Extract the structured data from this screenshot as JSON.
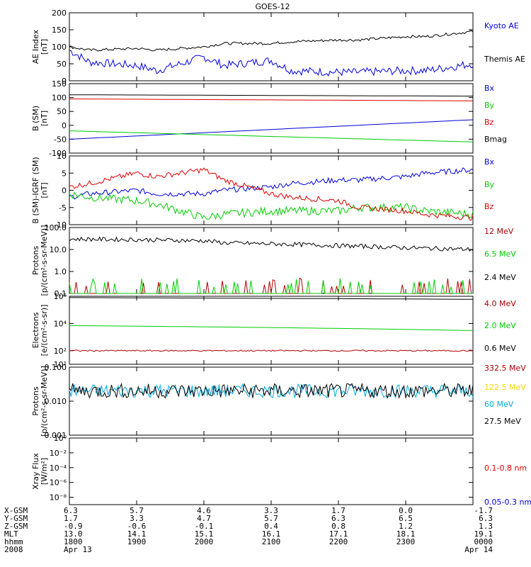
{
  "title": "GOES-12",
  "colors": {
    "black": "#000000",
    "blue": "#0000dd",
    "red": "#dd0000",
    "green": "#00cc00",
    "darkred": "#b00000",
    "yellow": "#ffd700",
    "cyan": "#00aadd"
  },
  "chart_data": [
    {
      "type": "line",
      "ylabel_lines": [
        "AE Index",
        "[nT]"
      ],
      "ylim": [
        0,
        200
      ],
      "log": false,
      "yticks": [
        0,
        50,
        100,
        150,
        200
      ],
      "ytick_labels": [
        "0",
        "50",
        "100",
        "150",
        "200"
      ],
      "x": [
        1800,
        1830,
        1900,
        1930,
        2000,
        2030,
        2100,
        2130,
        2200,
        2230,
        2300,
        2330,
        2400
      ],
      "series": [
        {
          "name": "Kyoto AE",
          "color": "blue",
          "values": [
            90,
            55,
            45,
            30,
            70,
            45,
            60,
            30,
            25,
            25,
            30,
            30,
            50
          ],
          "noise": 12
        },
        {
          "name": "Themis AE",
          "color": "black",
          "values": [
            100,
            90,
            95,
            90,
            100,
            110,
            110,
            115,
            120,
            120,
            130,
            130,
            145
          ],
          "noise": 4
        }
      ]
    },
    {
      "type": "line",
      "ylabel_lines": [
        "B (SM)",
        "[nT]"
      ],
      "ylim": [
        -100,
        150
      ],
      "log": false,
      "yticks": [
        -100,
        -50,
        0,
        50,
        100,
        150
      ],
      "ytick_labels": [
        "-100",
        "-50",
        "0",
        "50",
        "100",
        "150"
      ],
      "x": [
        1800,
        2400
      ],
      "series": [
        {
          "name": "Bx",
          "color": "blue",
          "values": [
            -50,
            20
          ],
          "noise": 0
        },
        {
          "name": "By",
          "color": "green",
          "values": [
            -20,
            -60
          ],
          "noise": 0
        },
        {
          "name": "Bz",
          "color": "red",
          "values": [
            95,
            88
          ],
          "noise": 0
        },
        {
          "name": "Bmag",
          "color": "black",
          "values": [
            110,
            105
          ],
          "noise": 0
        }
      ]
    },
    {
      "type": "line",
      "ylabel_lines": [
        "B (SM)-IGRF (SM)",
        "[nT]"
      ],
      "ylim": [
        -10,
        10
      ],
      "log": false,
      "yticks": [
        -10,
        -5,
        0,
        5,
        10
      ],
      "ytick_labels": [
        "-10",
        "-5",
        "0",
        "5",
        "10"
      ],
      "x": [
        1800,
        1830,
        1900,
        1930,
        2000,
        2030,
        2100,
        2130,
        2200,
        2230,
        2300,
        2330,
        2400
      ],
      "series": [
        {
          "name": "Bx",
          "color": "blue",
          "values": [
            -2,
            -1,
            0,
            -1,
            -1,
            0,
            1,
            2,
            3,
            3,
            4,
            5,
            6
          ],
          "noise": 0.8
        },
        {
          "name": "By",
          "color": "green",
          "values": [
            -1,
            -2,
            -3,
            -4,
            -8,
            -7,
            -6,
            -6,
            -6,
            -5,
            -5,
            -6,
            -7
          ],
          "noise": 1.2
        },
        {
          "name": "Bz",
          "color": "red",
          "values": [
            1,
            2,
            5,
            4,
            6,
            3,
            -1,
            -2,
            -3,
            -5,
            -6,
            -7,
            -8
          ],
          "noise": 0.8
        }
      ]
    },
    {
      "type": "line",
      "ylabel_lines": [
        "Protons",
        "[p/(cm²-s-sr-MeV)]"
      ],
      "ylim": [
        0.1,
        100
      ],
      "log": true,
      "yticks": [
        0.1,
        1,
        10,
        100
      ],
      "ytick_labels": [
        "0.1",
        "1.0",
        "10.0",
        "100.0"
      ],
      "x": [
        1800,
        1900,
        2000,
        2030,
        2100,
        2200,
        2300,
        2400
      ],
      "series": [
        {
          "name": "12 MeV",
          "color": "darkred",
          "values": [
            0.1,
            0.1,
            0.1,
            0.1,
            0.1,
            0.1,
            0.1,
            0.1
          ],
          "noise": 0,
          "spikes": true
        },
        {
          "name": "6.5 MeV",
          "color": "green",
          "values": [
            0.1,
            0.1,
            0.1,
            0.1,
            0.1,
            0.1,
            0.1,
            0.1
          ],
          "noise": 0,
          "spikes": true
        },
        {
          "name": "2.4 MeV",
          "color": "black",
          "values": [
            30,
            28,
            25,
            20,
            18,
            15,
            12,
            10
          ],
          "noise": 0.1
        }
      ]
    },
    {
      "type": "line",
      "ylabel_lines": [
        "Electrons",
        "[e/(cm²-s-sr)]"
      ],
      "ylim": [
        10,
        1000000
      ],
      "log": true,
      "yticks": [
        10,
        100,
        10000,
        1000000
      ],
      "ytick_labels": [
        "10¹",
        "10²",
        "10⁴",
        "10⁶"
      ],
      "x": [
        1800,
        2400
      ],
      "series": [
        {
          "name": "4.0 MeV",
          "color": "darkred",
          "values": [
            100,
            100
          ],
          "noise": 0.05
        },
        {
          "name": "2.0 MeV",
          "color": "green",
          "values": [
            7000,
            3000
          ],
          "noise": 0
        },
        {
          "name": "0.6 MeV",
          "color": "black",
          "values": [
            800000,
            600000
          ],
          "noise": 0
        }
      ]
    },
    {
      "type": "line",
      "ylabel_lines": [
        "Protons",
        "[p/(cm²-s-sr-MeV)]"
      ],
      "ylim": [
        0.001,
        0.1
      ],
      "log": true,
      "yticks": [
        0.001,
        0.01,
        0.1
      ],
      "ytick_labels": [
        "0.001",
        "0.010",
        "0.100"
      ],
      "x": [
        1800,
        2400
      ],
      "series": [
        {
          "name": "332.5 MeV",
          "color": "darkred",
          "values": null,
          "noise": 0
        },
        {
          "name": "122.5 MeV",
          "color": "yellow",
          "values": null,
          "noise": 0
        },
        {
          "name": "60 MeV",
          "color": "cyan",
          "values": [
            0.02,
            0.02
          ],
          "noise": 0.2
        },
        {
          "name": "27.5 MeV",
          "color": "black",
          "values": [
            0.02,
            0.02
          ],
          "noise": 0.22
        }
      ]
    },
    {
      "type": "line",
      "ylabel_lines": [
        "Xray Flux",
        "[W/m²]"
      ],
      "ylim": [
        1e-09,
        1
      ],
      "log": true,
      "yticks": [
        1,
        0.01,
        0.0001,
        1e-06,
        1e-08
      ],
      "ytick_labels": [
        "10⁰",
        "10⁻²",
        "10⁻⁴",
        "10⁻⁶",
        "10⁻⁸"
      ],
      "x": [
        1800,
        2400
      ],
      "series": [
        {
          "name": "0.1-0.8 nm",
          "color": "red",
          "values": null,
          "noise": 0
        },
        {
          "name": "0.05-0.3 nm",
          "color": "blue",
          "values": null,
          "noise": 0
        }
      ]
    }
  ],
  "xaxis": {
    "row_labels": [
      "X-GSM",
      "Y-GSM",
      "Z-GSM",
      "MLT",
      "hhmm",
      "2008"
    ],
    "ticks": [
      {
        "values": [
          "6.3",
          "1.7",
          "-0.9",
          "13.0",
          "1800",
          "Apr 13"
        ]
      },
      {
        "values": [
          "5.7",
          "3.3",
          "-0.6",
          "14.1",
          "1900",
          ""
        ]
      },
      {
        "values": [
          "4.6",
          "4.7",
          "-0.1",
          "15.1",
          "2000",
          ""
        ]
      },
      {
        "values": [
          "3.3",
          "5.7",
          "0.4",
          "16.1",
          "2100",
          ""
        ]
      },
      {
        "values": [
          "1.7",
          "6.3",
          "0.8",
          "17.1",
          "2200",
          ""
        ]
      },
      {
        "values": [
          "0.0",
          "6.5",
          "1.2",
          "18.1",
          "2300",
          ""
        ]
      },
      {
        "values": [
          "-1.7",
          "6.3",
          "1.3",
          "19.1",
          "0000",
          "Apr 14"
        ]
      }
    ]
  }
}
